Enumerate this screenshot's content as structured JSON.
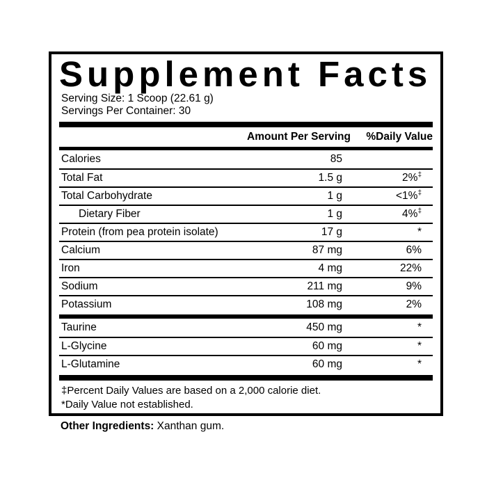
{
  "colors": {
    "text": "#000000",
    "background": "#ffffff",
    "border": "#000000"
  },
  "label": {
    "title": "Supplement Facts",
    "serving_size": "Serving Size: 1 Scoop (22.61 g)",
    "servings_per_container": "Servings Per Container: 30",
    "header": {
      "amount": "Amount Per Serving",
      "dv": "%Daily Value"
    },
    "sections": [
      {
        "rows": [
          {
            "name": "Calories",
            "amount": "85",
            "dv": ""
          },
          {
            "name": "Total Fat",
            "amount": "1.5 g",
            "dv": "2%",
            "dv_sup": "‡"
          },
          {
            "name": "Total Carbohydrate",
            "amount": "1 g",
            "dv": "<1%",
            "dv_sup": "‡"
          },
          {
            "name": "Dietary Fiber",
            "amount": "1 g",
            "dv": "4%",
            "dv_sup": "‡",
            "indent": true
          },
          {
            "name": "Protein (from pea protein isolate)",
            "amount": "17 g",
            "dv": "*"
          },
          {
            "name": "Calcium",
            "amount": "87 mg",
            "dv": "6%"
          },
          {
            "name": "Iron",
            "amount": "4 mg",
            "dv": "22%"
          },
          {
            "name": "Sodium",
            "amount": "211 mg",
            "dv": "9%"
          },
          {
            "name": "Potassium",
            "amount": "108 mg",
            "dv": "2%"
          }
        ]
      },
      {
        "rows": [
          {
            "name": "Taurine",
            "amount": "450 mg",
            "dv": "*"
          },
          {
            "name": "L-Glycine",
            "amount": "60 mg",
            "dv": "*"
          },
          {
            "name": "L-Glutamine",
            "amount": "60 mg",
            "dv": "*"
          }
        ]
      }
    ],
    "footnotes": [
      "‡Percent Daily Values are based on a 2,000 calorie diet.",
      "*Daily Value not established."
    ],
    "other_ingredients_label": "Other Ingredients:",
    "other_ingredients_value": "Xanthan gum."
  }
}
